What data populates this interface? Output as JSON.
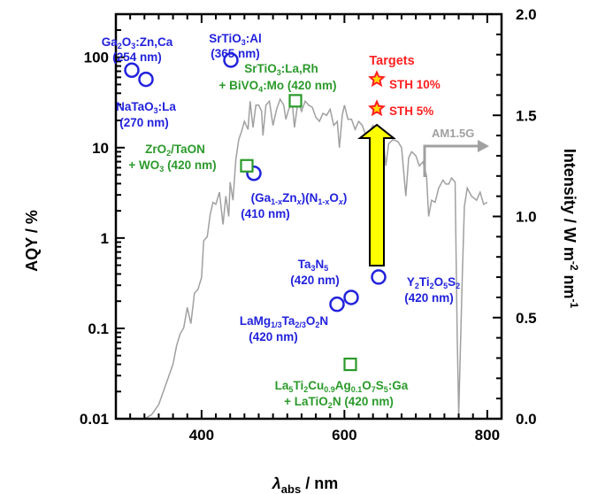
{
  "chart_data": {
    "type": "scatter",
    "x_axis": {
      "title_main": "λ",
      "title_sub": "abs",
      "title_unit": " / nm",
      "range": [
        280,
        820
      ],
      "ticks": [
        400,
        600,
        800
      ],
      "tick_labels": [
        "400",
        "600",
        "800"
      ]
    },
    "y_axis_left": {
      "title": "AQY / %",
      "scale": "log",
      "range": [
        0.01,
        300
      ],
      "ticks": [
        0.01,
        0.1,
        1,
        10,
        100
      ],
      "tick_labels": [
        "0.01",
        "0.1",
        "1",
        "10",
        "100"
      ]
    },
    "y_axis_right": {
      "title_main": "Intensity / W m",
      "title_sup1": "-2",
      "title_mid": " nm",
      "title_sup2": "-1",
      "range": [
        0.0,
        2.0
      ],
      "ticks": [
        0.0,
        0.5,
        1.0,
        1.5,
        2.0
      ],
      "tick_labels": [
        "0.0",
        "0.5",
        "1.0",
        "1.5",
        "2.0"
      ]
    },
    "series": [
      {
        "marker": "circle",
        "color": "#2222dd",
        "points": [
          {
            "x": 254,
            "y": 72
          },
          {
            "x": 270,
            "y": 57
          },
          {
            "x": 365,
            "y": 93
          },
          {
            "x": 410,
            "y": 5.2
          },
          {
            "x": 420,
            "y": 0.22
          },
          {
            "x": 420,
            "y": 0.185
          },
          {
            "x": 420,
            "y": 0.37
          }
        ]
      },
      {
        "marker": "square",
        "color": "#2a9a2a",
        "points": [
          {
            "x": 420,
            "y": 33
          },
          {
            "x": 420,
            "y": 6.3
          },
          {
            "x": 420,
            "y": 0.04
          }
        ]
      },
      {
        "marker": "star",
        "color": "#ff2020",
        "points": [
          {
            "x": 640,
            "y": 57
          },
          {
            "x": 640,
            "y": 27
          }
        ]
      }
    ],
    "am15g_spectrum": {
      "color": "#a0a0a0",
      "points": [
        [
          300,
          0.0
        ],
        [
          320,
          0.0
        ],
        [
          330,
          0.02
        ],
        [
          340,
          0.07
        ],
        [
          350,
          0.17
        ],
        [
          360,
          0.27
        ],
        [
          365,
          0.36
        ],
        [
          370,
          0.42
        ],
        [
          375,
          0.45
        ],
        [
          380,
          0.55
        ],
        [
          385,
          0.47
        ],
        [
          390,
          0.62
        ],
        [
          395,
          0.64
        ],
        [
          400,
          0.7
        ],
        [
          403,
          0.88
        ],
        [
          408,
          0.9
        ],
        [
          412,
          1.01
        ],
        [
          416,
          1.07
        ],
        [
          420,
          1.06
        ],
        [
          425,
          1.12
        ],
        [
          430,
          0.96
        ],
        [
          434,
          1.1
        ],
        [
          438,
          1.0
        ],
        [
          440,
          1.17
        ],
        [
          444,
          1.08
        ],
        [
          448,
          1.28
        ],
        [
          452,
          1.38
        ],
        [
          456,
          1.42
        ],
        [
          460,
          1.47
        ],
        [
          465,
          1.43
        ],
        [
          468,
          1.57
        ],
        [
          472,
          1.44
        ],
        [
          476,
          1.55
        ],
        [
          480,
          1.55
        ],
        [
          484,
          1.52
        ],
        [
          486,
          1.4
        ],
        [
          490,
          1.55
        ],
        [
          495,
          1.57
        ],
        [
          500,
          1.45
        ],
        [
          505,
          1.53
        ],
        [
          510,
          1.58
        ],
        [
          515,
          1.55
        ],
        [
          518,
          1.48
        ],
        [
          522,
          1.53
        ],
        [
          527,
          1.56
        ],
        [
          530,
          1.44
        ],
        [
          535,
          1.57
        ],
        [
          540,
          1.52
        ],
        [
          545,
          1.57
        ],
        [
          550,
          1.55
        ],
        [
          555,
          1.54
        ],
        [
          560,
          1.49
        ],
        [
          565,
          1.47
        ],
        [
          570,
          1.51
        ],
        [
          575,
          1.5
        ],
        [
          580,
          1.53
        ],
        [
          585,
          1.45
        ],
        [
          590,
          1.47
        ],
        [
          593,
          1.34
        ],
        [
          597,
          1.5
        ],
        [
          600,
          1.55
        ],
        [
          605,
          1.48
        ],
        [
          610,
          1.48
        ],
        [
          615,
          1.43
        ],
        [
          620,
          1.47
        ],
        [
          625,
          1.45
        ],
        [
          630,
          1.4
        ],
        [
          635,
          1.42
        ],
        [
          640,
          1.45
        ],
        [
          645,
          1.41
        ],
        [
          650,
          1.38
        ],
        [
          655,
          1.36
        ],
        [
          658,
          1.25
        ],
        [
          662,
          1.36
        ],
        [
          668,
          1.38
        ],
        [
          675,
          1.37
        ],
        [
          680,
          1.34
        ],
        [
          686,
          1.1
        ],
        [
          690,
          1.29
        ],
        [
          694,
          1.32
        ],
        [
          700,
          1.3
        ],
        [
          705,
          1.25
        ],
        [
          710,
          1.27
        ],
        [
          715,
          1.2
        ],
        [
          718,
          1.0
        ],
        [
          722,
          1.08
        ],
        [
          727,
          1.07
        ],
        [
          732,
          1.14
        ],
        [
          738,
          1.18
        ],
        [
          742,
          1.16
        ],
        [
          746,
          1.16
        ],
        [
          750,
          1.19
        ],
        [
          755,
          1.17
        ],
        [
          758,
          0.4
        ],
        [
          760,
          0.02
        ],
        [
          762,
          0.3
        ],
        [
          765,
          0.7
        ],
        [
          768,
          1.05
        ],
        [
          772,
          1.14
        ],
        [
          778,
          1.1
        ],
        [
          785,
          1.08
        ],
        [
          790,
          1.12
        ],
        [
          795,
          1.06
        ],
        [
          800,
          1.07
        ]
      ]
    },
    "annotations": {
      "ga2o3": {
        "line1": "Ga",
        "sub1": "2",
        "mid1": "O",
        "sub2": "3",
        "rest1": ":Zn,Ca",
        "line2": "(254 nm)",
        "color": "#2222dd"
      },
      "natao3": {
        "line1": "NaTaO",
        "sub1": "3",
        "rest1": ":La",
        "line2": "(270 nm)",
        "color": "#2222dd"
      },
      "srtio3al": {
        "line1": "SrTiO",
        "sub1": "3",
        "rest1": ":Al",
        "line2": "(365 nm)",
        "color": "#2222dd"
      },
      "srtio3la": {
        "line1": "SrTiO",
        "sub1": "3",
        "rest1": ":La,Rh",
        "line2a": "+ BiVO",
        "sub2": "4",
        "line2b": ":Mo (420 nm)",
        "color": "#2a9a2a"
      },
      "zro2": {
        "line1": "ZrO",
        "sub1": "2",
        "rest1": "/TaON",
        "line2a": "+ WO",
        "sub2": "3",
        "line2b": " (420 nm)",
        "color": "#2a9a2a"
      },
      "gazn": {
        "p1": "(Ga",
        "s1": "1-x",
        "p2": "Zn",
        "s2": "x",
        "p3": ")(N",
        "s3": "1-x",
        "p4": "O",
        "s4": "x",
        "p5": ")",
        "line2": "(410 nm)",
        "color": "#2222dd"
      },
      "ta3n5": {
        "line1": "Ta",
        "sub1": "3",
        "mid1": "N",
        "sub2": "5",
        "line2": "(420 nm)",
        "color": "#2222dd"
      },
      "lamg": {
        "p1": "LaMg",
        "s1": "1/3",
        "p2": "Ta",
        "s2": "2/3",
        "p3": "O",
        "s3": "2",
        "p4": "N",
        "line2": "(420 nm)",
        "color": "#2222dd"
      },
      "y2ti2": {
        "p1": "Y",
        "s1": "2",
        "p2": "Ti",
        "s2": "2",
        "p3": "O",
        "s3": "5",
        "p4": "S",
        "s4": "2",
        "line2": "(420 nm)",
        "color": "#2222dd"
      },
      "la5ti2": {
        "p1": "La",
        "s1": "5",
        "p2": "Ti",
        "s2": "2",
        "p3": "Cu",
        "s3": "0.9",
        "p4": "Ag",
        "s4": "0.1",
        "p5": "O",
        "s5": "7",
        "p6": "S",
        "s6": "5",
        "p7": ":Ga",
        "line2a": "+ LaTiO",
        "sub2": "2",
        "line2b": "N (420 nm)",
        "color": "#2a9a2a"
      },
      "targets": {
        "title": "Targets",
        "sth10": "STH 10%",
        "sth5": "STH  5%",
        "color": "#ff2020"
      },
      "am15g": {
        "text": "AM1.5G",
        "color": "#a0a0a0"
      }
    },
    "arrow_color": "#ffff00",
    "grid": false
  }
}
